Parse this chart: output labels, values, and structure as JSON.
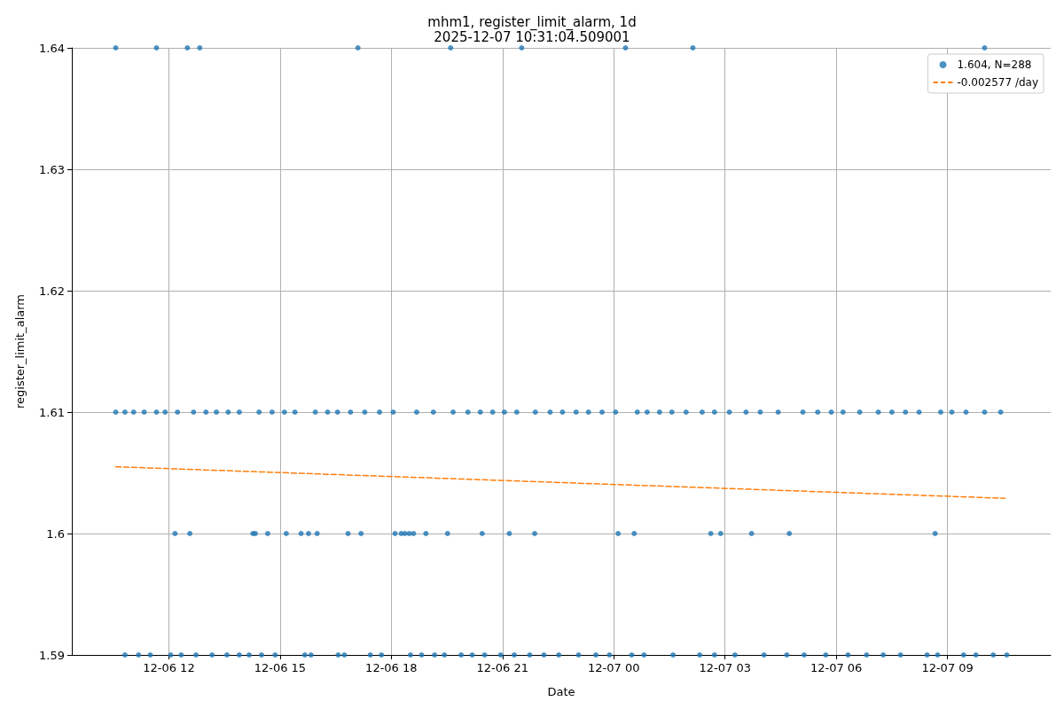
{
  "chart_data": {
    "type": "scatter",
    "title": "mhm1, register_limit_alarm, 1d",
    "subtitle": "2025-12-07 10:31:04.509001",
    "xlabel": "Date",
    "ylabel": "register_limit_alarm",
    "xlim": [
      "2025-12-06T09:23",
      "2025-12-07T11:47"
    ],
    "xticks": [
      {
        "value": "2025-12-06T12:00",
        "label": "12-06 12"
      },
      {
        "value": "2025-12-06T15:00",
        "label": "12-06 15"
      },
      {
        "value": "2025-12-06T18:00",
        "label": "12-06 18"
      },
      {
        "value": "2025-12-06T21:00",
        "label": "12-06 21"
      },
      {
        "value": "2025-12-07T00:00",
        "label": "12-07 00"
      },
      {
        "value": "2025-12-07T03:00",
        "label": "12-07 03"
      },
      {
        "value": "2025-12-07T06:00",
        "label": "12-07 06"
      },
      {
        "value": "2025-12-07T09:00",
        "label": "12-07 09"
      }
    ],
    "ylim": [
      1.59,
      1.64
    ],
    "yticks": [
      1.59,
      1.6,
      1.61,
      1.62,
      1.63,
      1.64
    ],
    "grid": true,
    "legend": "top right",
    "series": [
      {
        "name": "1.604, N=288",
        "color": "#1f77b4",
        "marker": "circle",
        "x": [
          "2025-12-06T10:34",
          "2025-12-06T11:40",
          "2025-12-06T12:30",
          "2025-12-06T12:50",
          "2025-12-06T17:06",
          "2025-12-06T19:36",
          "2025-12-06T21:31",
          "2025-12-07T00:19",
          "2025-12-07T02:08",
          "2025-12-07T10:00",
          "2025-12-06T12:10",
          "2025-12-06T12:34",
          "2025-12-06T14:16",
          "2025-12-06T14:20",
          "2025-12-06T14:40",
          "2025-12-06T15:10",
          "2025-12-06T15:34",
          "2025-12-06T15:46",
          "2025-12-06T16:00",
          "2025-12-06T16:50",
          "2025-12-06T17:11",
          "2025-12-06T18:06",
          "2025-12-06T18:16",
          "2025-12-06T18:22",
          "2025-12-06T18:29",
          "2025-12-06T18:36",
          "2025-12-06T18:56",
          "2025-12-06T19:31",
          "2025-12-06T20:27",
          "2025-12-06T21:11",
          "2025-12-06T21:52",
          "2025-12-07T00:07",
          "2025-12-07T00:33",
          "2025-12-07T02:37",
          "2025-12-07T02:53",
          "2025-12-07T03:43",
          "2025-12-07T04:44",
          "2025-12-07T08:40",
          "2025-12-06T10:49",
          "2025-12-06T11:11",
          "2025-12-06T11:30",
          "2025-12-06T12:03",
          "2025-12-06T12:20",
          "2025-12-06T12:44",
          "2025-12-06T13:10",
          "2025-12-06T13:34",
          "2025-12-06T13:54",
          "2025-12-06T14:10",
          "2025-12-06T14:30",
          "2025-12-06T14:52",
          "2025-12-06T15:40",
          "2025-12-06T15:50",
          "2025-12-06T16:34",
          "2025-12-06T16:44",
          "2025-12-06T17:26",
          "2025-12-06T17:44",
          "2025-12-06T18:31",
          "2025-12-06T18:49",
          "2025-12-06T19:10",
          "2025-12-06T19:26",
          "2025-12-06T19:53",
          "2025-12-06T20:11",
          "2025-12-06T20:31",
          "2025-12-06T20:57",
          "2025-12-06T21:19",
          "2025-12-06T21:44",
          "2025-12-06T22:07",
          "2025-12-06T22:31",
          "2025-12-06T23:03",
          "2025-12-06T23:31",
          "2025-12-06T23:53",
          "2025-12-07T00:29",
          "2025-12-07T00:49",
          "2025-12-07T01:36",
          "2025-12-07T02:19",
          "2025-12-07T02:43",
          "2025-12-07T03:16",
          "2025-12-07T04:03",
          "2025-12-07T04:40",
          "2025-12-07T05:08",
          "2025-12-07T05:43",
          "2025-12-07T06:19",
          "2025-12-07T06:49",
          "2025-12-07T07:16",
          "2025-12-07T07:44",
          "2025-12-07T08:27",
          "2025-12-07T08:44",
          "2025-12-07T09:26",
          "2025-12-07T09:46",
          "2025-12-07T10:14",
          "2025-12-07T10:36",
          "2025-12-06T10:34",
          "2025-12-06T10:49",
          "2025-12-06T11:03",
          "2025-12-06T11:20",
          "2025-12-06T11:40",
          "2025-12-06T11:54",
          "2025-12-06T12:14",
          "2025-12-06T12:40",
          "2025-12-06T13:00",
          "2025-12-06T13:17",
          "2025-12-06T13:36",
          "2025-12-06T13:54",
          "2025-12-06T14:26",
          "2025-12-06T14:47",
          "2025-12-06T15:07",
          "2025-12-06T15:24",
          "2025-12-06T15:57",
          "2025-12-06T16:17",
          "2025-12-06T16:33",
          "2025-12-06T16:54",
          "2025-12-06T17:17",
          "2025-12-06T17:41",
          "2025-12-06T18:03",
          "2025-12-06T18:41",
          "2025-12-06T19:08",
          "2025-12-06T19:40",
          "2025-12-06T20:04",
          "2025-12-06T20:24",
          "2025-12-06T20:44",
          "2025-12-06T21:03",
          "2025-12-06T21:23",
          "2025-12-06T21:53",
          "2025-12-06T22:17",
          "2025-12-06T22:37",
          "2025-12-06T22:59",
          "2025-12-06T23:19",
          "2025-12-06T23:41",
          "2025-12-07T00:03",
          "2025-12-07T00:38",
          "2025-12-07T00:54",
          "2025-12-07T01:14",
          "2025-12-07T01:34",
          "2025-12-07T01:57",
          "2025-12-07T02:23",
          "2025-12-07T02:43",
          "2025-12-07T03:07",
          "2025-12-07T03:34",
          "2025-12-07T03:57",
          "2025-12-07T04:26",
          "2025-12-07T05:06",
          "2025-12-07T05:30",
          "2025-12-07T05:52",
          "2025-12-07T06:11",
          "2025-12-07T06:38",
          "2025-12-07T07:08",
          "2025-12-07T07:30",
          "2025-12-07T07:52",
          "2025-12-07T08:14",
          "2025-12-07T08:49",
          "2025-12-07T09:07",
          "2025-12-07T09:30",
          "2025-12-07T10:00",
          "2025-12-07T10:26"
        ],
        "values": [
          1.64,
          1.64,
          1.64,
          1.64,
          1.64,
          1.64,
          1.64,
          1.64,
          1.64,
          1.64,
          1.6,
          1.6,
          1.6,
          1.6,
          1.6,
          1.6,
          1.6,
          1.6,
          1.6,
          1.6,
          1.6,
          1.6,
          1.6,
          1.6,
          1.6,
          1.6,
          1.6,
          1.6,
          1.6,
          1.6,
          1.6,
          1.6,
          1.6,
          1.6,
          1.6,
          1.6,
          1.6,
          1.6,
          1.59,
          1.59,
          1.59,
          1.59,
          1.59,
          1.59,
          1.59,
          1.59,
          1.59,
          1.59,
          1.59,
          1.59,
          1.59,
          1.59,
          1.59,
          1.59,
          1.59,
          1.59,
          1.59,
          1.59,
          1.59,
          1.59,
          1.59,
          1.59,
          1.59,
          1.59,
          1.59,
          1.59,
          1.59,
          1.59,
          1.59,
          1.59,
          1.59,
          1.59,
          1.59,
          1.59,
          1.59,
          1.59,
          1.59,
          1.59,
          1.59,
          1.59,
          1.59,
          1.59,
          1.59,
          1.59,
          1.59,
          1.59,
          1.59,
          1.59,
          1.59,
          1.59,
          1.59,
          1.61,
          1.61,
          1.61,
          1.61,
          1.61,
          1.61,
          1.61,
          1.61,
          1.61,
          1.61,
          1.61,
          1.61,
          1.61,
          1.61,
          1.61,
          1.61,
          1.61,
          1.61,
          1.61,
          1.61,
          1.61,
          1.61,
          1.61,
          1.61,
          1.61,
          1.61,
          1.61,
          1.61,
          1.61,
          1.61,
          1.61,
          1.61,
          1.61,
          1.61,
          1.61,
          1.61,
          1.61,
          1.61,
          1.61,
          1.61,
          1.61,
          1.61,
          1.61,
          1.61,
          1.61,
          1.61,
          1.61,
          1.61,
          1.61,
          1.61,
          1.61,
          1.61,
          1.61,
          1.61,
          1.61,
          1.61,
          1.61,
          1.61,
          1.61,
          1.61,
          1.61,
          1.61,
          1.61
        ]
      },
      {
        "name": "-0.002577 /day",
        "color": "#ff7f0e",
        "type": "line",
        "line_style": "dashed",
        "marker": "none",
        "x": [
          "2025-12-06T10:34",
          "2025-12-07T10:33"
        ],
        "values": [
          1.6055,
          1.6029
        ]
      }
    ]
  }
}
